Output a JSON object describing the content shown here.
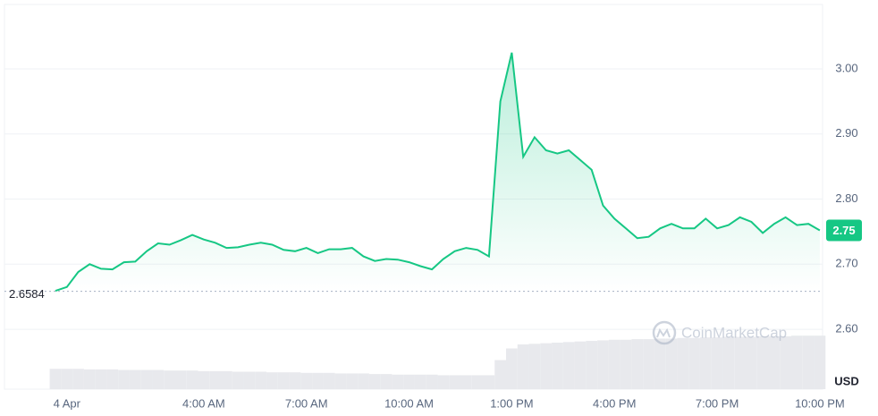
{
  "chart_data": {
    "type": "line",
    "categories": [
      null,
      "4 Apr",
      null,
      null,
      null,
      null,
      null,
      null,
      null,
      null,
      null,
      null,
      null,
      "4:00 AM",
      null,
      null,
      null,
      null,
      null,
      null,
      null,
      null,
      "7:00 AM",
      null,
      null,
      null,
      null,
      null,
      null,
      null,
      null,
      "10:00 AM",
      null,
      null,
      null,
      null,
      null,
      null,
      null,
      null,
      "1:00 PM",
      null,
      null,
      null,
      null,
      null,
      null,
      null,
      null,
      "4:00 PM",
      null,
      null,
      null,
      null,
      null,
      null,
      null,
      null,
      "7:00 PM",
      null,
      null,
      null,
      null,
      null,
      null,
      null,
      null,
      "10:00 PM"
    ],
    "series": [
      {
        "color": "#16c784",
        "values": [
          2.659,
          2.665,
          2.688,
          2.7,
          2.693,
          2.692,
          2.703,
          2.704,
          2.72,
          2.732,
          2.73,
          2.737,
          2.745,
          2.738,
          2.733,
          2.725,
          2.726,
          2.73,
          2.733,
          2.73,
          2.722,
          2.72,
          2.725,
          2.717,
          2.723,
          2.723,
          2.725,
          2.712,
          2.705,
          2.708,
          2.707,
          2.703,
          2.697,
          2.692,
          2.708,
          2.72,
          2.725,
          2.722,
          2.712,
          2.95,
          3.025,
          2.865,
          2.895,
          2.875,
          2.87,
          2.875,
          2.86,
          2.845,
          2.79,
          2.77,
          2.755,
          2.74,
          2.742,
          2.755,
          2.762,
          2.755,
          2.755,
          2.77,
          2.755,
          2.76,
          2.772,
          2.765,
          2.748,
          2.762,
          2.772,
          2.76,
          2.762,
          2.752
        ]
      }
    ],
    "volume": {
      "color": "#e8e9ed",
      "lim": [
        0,
        100
      ],
      "values": [
        35,
        35,
        35,
        34,
        34,
        34,
        33,
        33,
        33,
        33,
        32,
        32,
        32,
        31,
        31,
        31,
        30,
        30,
        30,
        29,
        29,
        29,
        28,
        28,
        28,
        27,
        27,
        27,
        26,
        26,
        25,
        25,
        25,
        25,
        24,
        24,
        24,
        24,
        24,
        50,
        70,
        77,
        78,
        79,
        80,
        81,
        82,
        83,
        84,
        85,
        85,
        86,
        86,
        87,
        87,
        88,
        88,
        89,
        89,
        90,
        90,
        90,
        91,
        91,
        91,
        92,
        92,
        92
      ]
    },
    "ylim": [
      2.508,
      3.099
    ],
    "yticks": [
      {
        "value": 2.6,
        "label": "2.60"
      },
      {
        "value": 2.7,
        "label": "2.70"
      },
      {
        "value": 2.8,
        "label": "2.80"
      },
      {
        "value": 2.9,
        "label": "2.90"
      },
      {
        "value": 3.0,
        "label": "3.00"
      }
    ],
    "grid": true,
    "reference": 2.6584,
    "current_price_label": "2.75",
    "currency": "USD",
    "watermark": "CoinMarketCap"
  }
}
